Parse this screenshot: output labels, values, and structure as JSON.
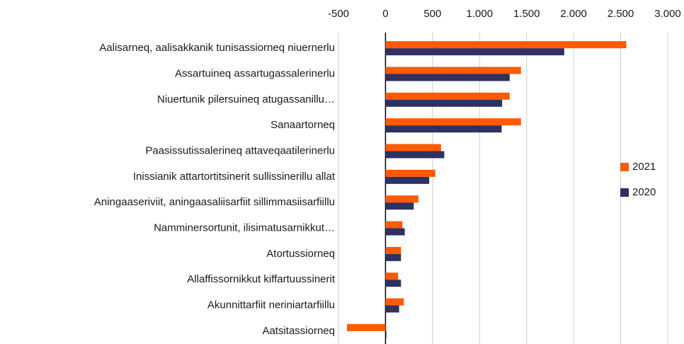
{
  "chart_data": {
    "type": "hbar",
    "categories": [
      "Aalisarneq, aalisakkanik tunisassiorneq niuernerlu",
      "Assartuineq assartugassalerinerlu",
      "Niuertunik pilersuineq atugassanillu…",
      "Sanaartorneq",
      "Paasissutissalerineq attaveqaatilerinerlu",
      "Inissianik attartortitsinerit sullissinerillu allat",
      "Aningaaseriviit, aningaasaliisarfiit sillimmasiisarfiillu",
      "Namminersortunit, ilisimatusarnikkut…",
      "Atortussiorneq",
      "Allaffissornikkut kiffartuussinerit",
      "Akunnittarfiit neriniartarfiillu",
      "Aatsitassiorneq"
    ],
    "series": [
      {
        "name": "2021",
        "color": "#ff5a00",
        "values": [
          2560,
          1440,
          1320,
          1440,
          590,
          530,
          350,
          180,
          165,
          135,
          195,
          -410
        ]
      },
      {
        "name": "2020",
        "color": "#2e3161",
        "values": [
          1900,
          1320,
          1240,
          1235,
          625,
          465,
          300,
          205,
          165,
          165,
          145,
          10
        ]
      }
    ],
    "xlim": [
      -500,
      3000
    ],
    "xticks": [
      -500,
      0,
      500,
      {
        "value": 1000,
        "label": "1.000"
      },
      {
        "value": 1500,
        "label": "1.500"
      },
      {
        "value": 2000,
        "label": "2.000"
      },
      {
        "value": 2500,
        "label": "2.500"
      },
      {
        "value": 3000,
        "label": "3.000"
      }
    ],
    "grid": true,
    "legend": "right"
  }
}
